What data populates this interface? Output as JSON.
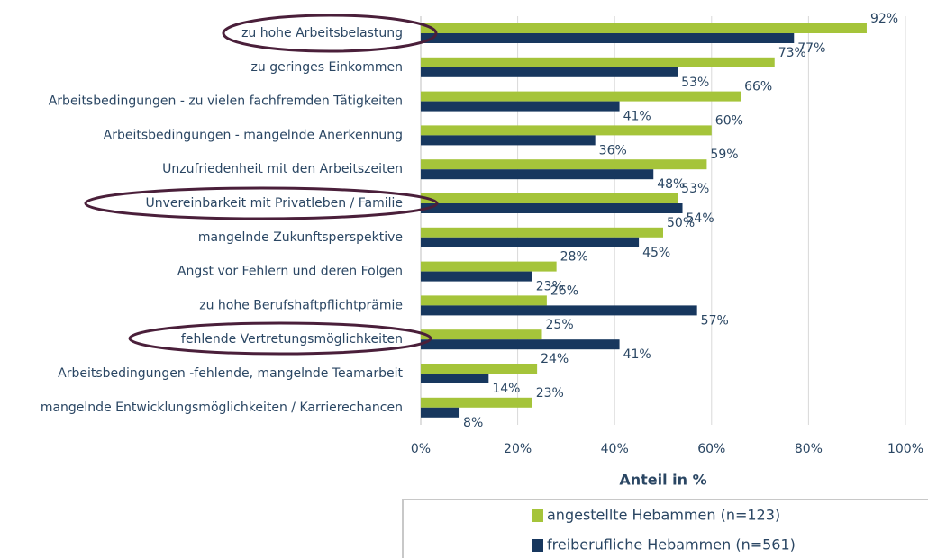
{
  "chart_data": {
    "type": "bar",
    "orientation": "horizontal",
    "categories": [
      "zu hohe Arbeitsbelastung",
      "zu geringes Einkommen",
      "Arbeitsbedingungen - zu vielen fachfremden Tätigkeiten",
      "Arbeitsbedingungen - mangelnde Anerkennung",
      "Unzufriedenheit mit den Arbeitszeiten",
      "Unvereinbarkeit mit Privatleben / Familie",
      "mangelnde Zukunftsperspektive",
      "Angst vor Fehlern und deren Folgen",
      "zu hohe Berufshaftpflichtprämie",
      "fehlende Vertretungsmöglichkeiten",
      "Arbeitsbedingungen -fehlende, mangelnde Teamarbeit",
      "mangelnde Entwicklungsmöglichkeiten / Karrierechancen"
    ],
    "series": [
      {
        "name": "angestellte Hebammen (n=123)",
        "color": "#a5c43a",
        "values": [
          92,
          73,
          66,
          60,
          59,
          53,
          50,
          28,
          26,
          25,
          24,
          23
        ],
        "value_labels": [
          "92%",
          "73%",
          "66%",
          "60%",
          "59%",
          "53%",
          "50%",
          "28%",
          "26%",
          "25%",
          "24%",
          "23%"
        ]
      },
      {
        "name": "freiberufliche Hebammen (n=561)",
        "color": "#17375e",
        "values": [
          77,
          53,
          41,
          36,
          48,
          54,
          45,
          23,
          57,
          41,
          14,
          8
        ],
        "value_labels": [
          "77%",
          "53%",
          "41%",
          "36%",
          "48%",
          "54%",
          "45%",
          "23%",
          "57%",
          "41%",
          "14%",
          "8%"
        ]
      }
    ],
    "xlabel": "Anteil in %",
    "xlim": [
      0,
      100
    ],
    "xticks": [
      {
        "value": 0,
        "label": "0%"
      },
      {
        "value": 20,
        "label": "20%"
      },
      {
        "value": 40,
        "label": "40%"
      },
      {
        "value": 60,
        "label": "60%"
      },
      {
        "value": 80,
        "label": "80%"
      },
      {
        "value": 100,
        "label": "100%"
      }
    ],
    "grid": true
  }
}
